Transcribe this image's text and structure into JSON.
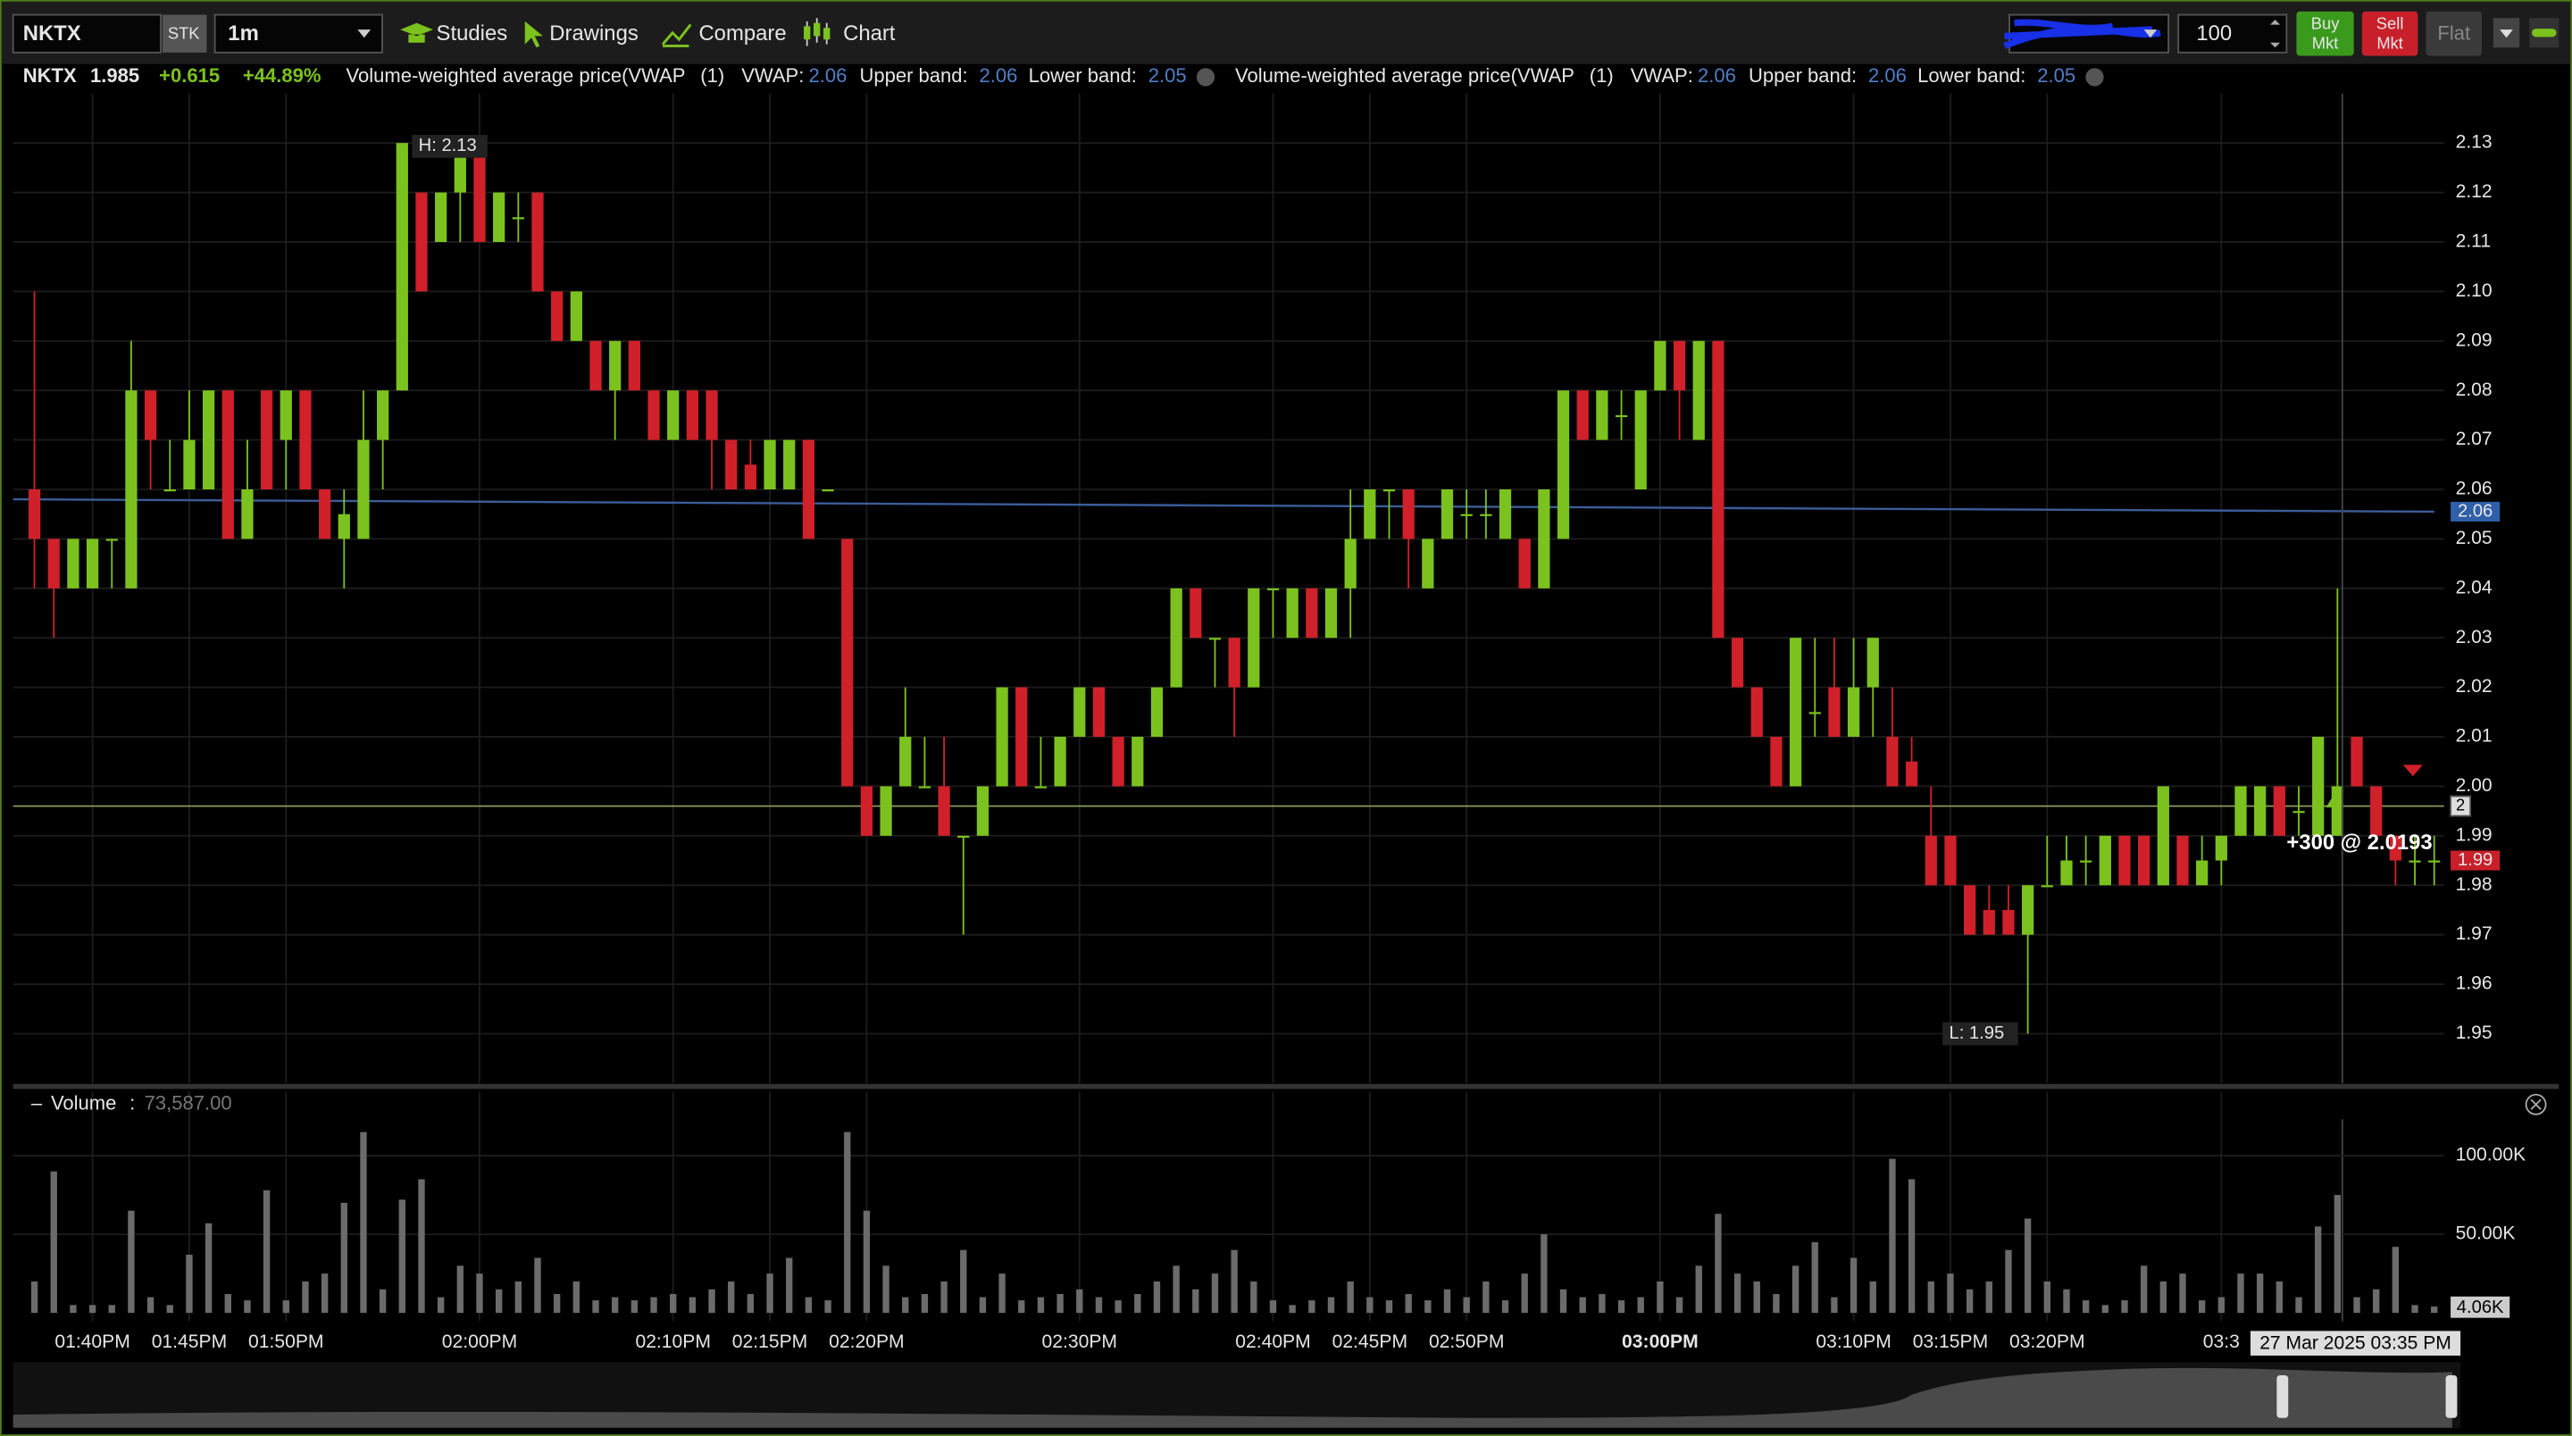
{
  "toolbar": {
    "symbol": "NKTX",
    "sectype": "STK",
    "interval": "1m",
    "menu": [
      "Studies",
      "Drawings",
      "Compare",
      "Chart"
    ],
    "quantity": "100",
    "buy": [
      "Buy",
      "Mkt"
    ],
    "sell": [
      "Sell",
      "Mkt"
    ],
    "flat": "Flat"
  },
  "chart_data": {
    "type": "candlestick",
    "header": {
      "symbol": "NKTX",
      "last": "1.985",
      "change": "+0.615",
      "change_pct": "+44.89%"
    },
    "studies": [
      {
        "name": "Volume-weighted average price(VWAP",
        "params": "(1)",
        "fields": [
          {
            "label": "VWAP:",
            "value": "2.06"
          },
          {
            "label": "Upper band:",
            "value": "2.06"
          },
          {
            "label": "Lower band:",
            "value": "2.05"
          }
        ]
      },
      {
        "name": "Volume-weighted average price(VWAP",
        "params": "(1)",
        "fields": [
          {
            "label": "VWAP:",
            "value": "2.06"
          },
          {
            "label": "Upper band:",
            "value": "2.06"
          },
          {
            "label": "Lower band:",
            "value": "2.05"
          }
        ]
      }
    ],
    "categories": [
      null,
      null,
      null,
      "01:40PM",
      null,
      null,
      null,
      null,
      "01:45PM",
      null,
      null,
      null,
      null,
      "01:50PM",
      null,
      null,
      null,
      null,
      null,
      null,
      null,
      null,
      null,
      "02:00PM",
      null,
      null,
      null,
      null,
      null,
      null,
      null,
      null,
      null,
      "02:10PM",
      null,
      null,
      null,
      null,
      "02:15PM",
      null,
      null,
      null,
      null,
      "02:20PM",
      null,
      null,
      null,
      null,
      null,
      null,
      null,
      null,
      null,
      null,
      "02:30PM",
      null,
      null,
      null,
      null,
      null,
      null,
      null,
      null,
      null,
      "02:40PM",
      null,
      null,
      null,
      null,
      "02:45PM",
      null,
      null,
      null,
      null,
      "02:50PM",
      null,
      null,
      null,
      null,
      null,
      null,
      null,
      null,
      null,
      "03:00PM",
      null,
      null,
      null,
      null,
      null,
      null,
      null,
      null,
      null,
      "03:10PM",
      null,
      null,
      null,
      null,
      "03:15PM",
      null,
      null,
      null,
      null,
      "03:20PM",
      null,
      null,
      null,
      null,
      null,
      null,
      null,
      null,
      "03:3",
      null,
      null,
      null,
      null,
      null,
      null,
      null,
      null,
      null,
      null,
      null
    ],
    "candles": [
      [
        2.06,
        2.1,
        2.04,
        2.05
      ],
      [
        2.05,
        2.05,
        2.03,
        2.04
      ],
      [
        2.04,
        2.05,
        2.04,
        2.05
      ],
      [
        2.04,
        2.05,
        2.04,
        2.05
      ],
      [
        2.05,
        2.05,
        2.04,
        2.05
      ],
      [
        2.04,
        2.09,
        2.04,
        2.08
      ],
      [
        2.08,
        2.08,
        2.06,
        2.07
      ],
      [
        2.06,
        2.07,
        2.06,
        2.06
      ],
      [
        2.06,
        2.08,
        2.06,
        2.07
      ],
      [
        2.06,
        2.08,
        2.06,
        2.08
      ],
      [
        2.08,
        2.08,
        2.05,
        2.05
      ],
      [
        2.05,
        2.07,
        2.05,
        2.06
      ],
      [
        2.08,
        2.08,
        2.06,
        2.06
      ],
      [
        2.07,
        2.08,
        2.06,
        2.08
      ],
      [
        2.08,
        2.08,
        2.06,
        2.06
      ],
      [
        2.06,
        2.06,
        2.05,
        2.05
      ],
      [
        2.05,
        2.06,
        2.04,
        2.055
      ],
      [
        2.05,
        2.08,
        2.05,
        2.07
      ],
      [
        2.07,
        2.08,
        2.06,
        2.08
      ],
      [
        2.08,
        2.13,
        2.08,
        2.13
      ],
      [
        2.12,
        2.12,
        2.1,
        2.1
      ],
      [
        2.11,
        2.12,
        2.11,
        2.12
      ],
      [
        2.12,
        2.13,
        2.11,
        2.13
      ],
      [
        2.13,
        2.13,
        2.11,
        2.11
      ],
      [
        2.11,
        2.12,
        2.11,
        2.12
      ],
      [
        2.115,
        2.12,
        2.11,
        2.115
      ],
      [
        2.12,
        2.12,
        2.1,
        2.1
      ],
      [
        2.1,
        2.1,
        2.09,
        2.09
      ],
      [
        2.09,
        2.1,
        2.09,
        2.1
      ],
      [
        2.09,
        2.09,
        2.08,
        2.08
      ],
      [
        2.08,
        2.09,
        2.07,
        2.09
      ],
      [
        2.09,
        2.09,
        2.08,
        2.08
      ],
      [
        2.08,
        2.08,
        2.07,
        2.07
      ],
      [
        2.07,
        2.08,
        2.07,
        2.08
      ],
      [
        2.08,
        2.08,
        2.07,
        2.07
      ],
      [
        2.08,
        2.08,
        2.06,
        2.07
      ],
      [
        2.07,
        2.07,
        2.06,
        2.06
      ],
      [
        2.065,
        2.07,
        2.06,
        2.06
      ],
      [
        2.06,
        2.07,
        2.06,
        2.07
      ],
      [
        2.06,
        2.07,
        2.06,
        2.07
      ],
      [
        2.07,
        2.07,
        2.05,
        2.05
      ],
      [
        2.06,
        2.06,
        2.06,
        2.06
      ],
      [
        2.05,
        2.05,
        2.0,
        2.0
      ],
      [
        2.0,
        2.0,
        1.99,
        1.99
      ],
      [
        1.99,
        2.0,
        1.99,
        2.0
      ],
      [
        2.0,
        2.02,
        2.0,
        2.01
      ],
      [
        2.0,
        2.01,
        2.0,
        2.0
      ],
      [
        2.0,
        2.01,
        1.99,
        1.99
      ],
      [
        1.99,
        1.99,
        1.97,
        1.99
      ],
      [
        1.99,
        2.0,
        1.99,
        2.0
      ],
      [
        2.0,
        2.02,
        2.0,
        2.02
      ],
      [
        2.02,
        2.02,
        2.0,
        2.0
      ],
      [
        2.0,
        2.01,
        2.0,
        2.0
      ],
      [
        2.0,
        2.01,
        2.0,
        2.01
      ],
      [
        2.01,
        2.02,
        2.01,
        2.02
      ],
      [
        2.02,
        2.02,
        2.01,
        2.01
      ],
      [
        2.01,
        2.01,
        2.0,
        2.0
      ],
      [
        2.0,
        2.01,
        2.0,
        2.01
      ],
      [
        2.01,
        2.02,
        2.01,
        2.02
      ],
      [
        2.02,
        2.04,
        2.02,
        2.04
      ],
      [
        2.04,
        2.04,
        2.03,
        2.03
      ],
      [
        2.03,
        2.03,
        2.02,
        2.03
      ],
      [
        2.03,
        2.03,
        2.01,
        2.02
      ],
      [
        2.02,
        2.04,
        2.02,
        2.04
      ],
      [
        2.04,
        2.04,
        2.03,
        2.04
      ],
      [
        2.03,
        2.04,
        2.03,
        2.04
      ],
      [
        2.04,
        2.04,
        2.03,
        2.03
      ],
      [
        2.03,
        2.04,
        2.03,
        2.04
      ],
      [
        2.04,
        2.06,
        2.03,
        2.05
      ],
      [
        2.05,
        2.06,
        2.05,
        2.06
      ],
      [
        2.06,
        2.06,
        2.05,
        2.06
      ],
      [
        2.06,
        2.06,
        2.04,
        2.05
      ],
      [
        2.04,
        2.05,
        2.04,
        2.05
      ],
      [
        2.05,
        2.06,
        2.05,
        2.06
      ],
      [
        2.055,
        2.06,
        2.05,
        2.055
      ],
      [
        2.055,
        2.06,
        2.05,
        2.055
      ],
      [
        2.05,
        2.06,
        2.05,
        2.06
      ],
      [
        2.05,
        2.05,
        2.04,
        2.04
      ],
      [
        2.04,
        2.06,
        2.04,
        2.06
      ],
      [
        2.05,
        2.08,
        2.05,
        2.08
      ],
      [
        2.08,
        2.08,
        2.07,
        2.07
      ],
      [
        2.07,
        2.08,
        2.07,
        2.08
      ],
      [
        2.075,
        2.08,
        2.07,
        2.075
      ],
      [
        2.06,
        2.08,
        2.06,
        2.08
      ],
      [
        2.08,
        2.09,
        2.08,
        2.09
      ],
      [
        2.09,
        2.09,
        2.07,
        2.08
      ],
      [
        2.07,
        2.09,
        2.07,
        2.09
      ],
      [
        2.09,
        2.09,
        2.03,
        2.03
      ],
      [
        2.03,
        2.03,
        2.02,
        2.02
      ],
      [
        2.02,
        2.02,
        2.01,
        2.01
      ],
      [
        2.01,
        2.01,
        2.0,
        2.0
      ],
      [
        2.0,
        2.03,
        2.0,
        2.03
      ],
      [
        2.015,
        2.03,
        2.01,
        2.015
      ],
      [
        2.02,
        2.03,
        2.01,
        2.01
      ],
      [
        2.01,
        2.03,
        2.01,
        2.02
      ],
      [
        2.02,
        2.03,
        2.01,
        2.03
      ],
      [
        2.01,
        2.02,
        2.0,
        2.0
      ],
      [
        2.005,
        2.01,
        2.0,
        2.0
      ],
      [
        1.99,
        2.0,
        1.98,
        1.98
      ],
      [
        1.99,
        1.99,
        1.98,
        1.98
      ],
      [
        1.98,
        1.98,
        1.97,
        1.97
      ],
      [
        1.975,
        1.98,
        1.97,
        1.97
      ],
      [
        1.975,
        1.98,
        1.97,
        1.97
      ],
      [
        1.97,
        1.98,
        1.95,
        1.98
      ],
      [
        1.98,
        1.99,
        1.98,
        1.98
      ],
      [
        1.98,
        1.99,
        1.98,
        1.985
      ],
      [
        1.985,
        1.99,
        1.98,
        1.985
      ],
      [
        1.98,
        1.99,
        1.98,
        1.99
      ],
      [
        1.99,
        1.99,
        1.98,
        1.98
      ],
      [
        1.99,
        1.99,
        1.98,
        1.98
      ],
      [
        1.98,
        2.0,
        1.98,
        2.0
      ],
      [
        1.99,
        1.99,
        1.98,
        1.98
      ],
      [
        1.98,
        1.99,
        1.98,
        1.985
      ],
      [
        1.985,
        1.99,
        1.98,
        1.99
      ],
      [
        1.99,
        2.0,
        1.99,
        2.0
      ],
      [
        1.99,
        2.0,
        1.99,
        2.0
      ],
      [
        2.0,
        2.0,
        1.99,
        1.99
      ],
      [
        1.995,
        2.0,
        1.99,
        1.995
      ],
      [
        1.99,
        2.01,
        1.99,
        2.01
      ],
      [
        1.99,
        2.04,
        1.99,
        2.0
      ],
      [
        2.01,
        2.01,
        2.0,
        2.0
      ],
      [
        2.0,
        2.0,
        1.99,
        1.99
      ],
      [
        1.99,
        1.99,
        1.98,
        1.985
      ],
      [
        1.985,
        1.99,
        1.98,
        1.985
      ],
      [
        1.985,
        1.99,
        1.98,
        1.985
      ]
    ],
    "up_color": "#7cc21e",
    "down_color": "#d0202a",
    "ylim": [
      1.94,
      2.14
    ],
    "yticks": [
      1.95,
      1.96,
      1.97,
      1.98,
      1.99,
      {
        "value": 2.0,
        "label": "2.00"
      },
      2.01,
      2.02,
      2.03,
      2.04,
      2.05,
      2.06,
      2.07,
      2.08,
      2.09,
      {
        "value": 2.1,
        "label": "2.10"
      },
      2.11,
      2.12,
      2.13
    ],
    "grid": true,
    "vwap": {
      "color": "#3b5d9a",
      "x": [
        0,
        124
      ],
      "values": [
        2.058,
        2.0555
      ],
      "badge": "2.06"
    },
    "position_line": {
      "value": 1.996,
      "label": "2",
      "color": "#8a9a5b"
    },
    "last_badge": "1.99",
    "high_label": "H: 2.13",
    "low_label": "L: 1.95",
    "trade_label": "+300 @ 2.0193",
    "crosshair_time": "27 Mar 2025 03:35 PM",
    "volume": {
      "title": "Volume",
      "value": "73,587.00",
      "color": "#6b6b6b",
      "values": [
        20000,
        90000,
        5000,
        5000,
        5000,
        65000,
        10000,
        5000,
        37000,
        57000,
        12000,
        8000,
        78000,
        8000,
        20000,
        25000,
        70000,
        115000,
        15000,
        72000,
        85000,
        10000,
        30000,
        25000,
        15000,
        20000,
        35000,
        12000,
        20000,
        8000,
        10000,
        8000,
        10000,
        12000,
        10000,
        15000,
        20000,
        12000,
        25000,
        35000,
        10000,
        8000,
        115000,
        65000,
        30000,
        10000,
        12000,
        20000,
        40000,
        10000,
        25000,
        8000,
        10000,
        12000,
        15000,
        10000,
        8000,
        12000,
        20000,
        30000,
        15000,
        25000,
        40000,
        20000,
        8000,
        5000,
        8000,
        10000,
        20000,
        10000,
        8000,
        12000,
        8000,
        15000,
        10000,
        20000,
        8000,
        25000,
        50000,
        15000,
        10000,
        12000,
        8000,
        10000,
        20000,
        10000,
        30000,
        63000,
        25000,
        20000,
        12000,
        30000,
        45000,
        10000,
        35000,
        20000,
        98000,
        85000,
        20000,
        25000,
        15000,
        20000,
        40000,
        60000,
        20000,
        15000,
        8000,
        5000,
        8000,
        30000,
        20000,
        25000,
        8000,
        10000,
        25000,
        25000,
        20000,
        10000,
        55000,
        75000,
        10000,
        15000,
        42000,
        5000,
        4060
      ],
      "value_labels_last": "4.06K",
      "ylim": [
        0,
        120000
      ],
      "yticks": [
        {
          "value": 50000,
          "label": "50.00K"
        },
        {
          "value": 100000,
          "label": "100.00K"
        }
      ]
    }
  }
}
